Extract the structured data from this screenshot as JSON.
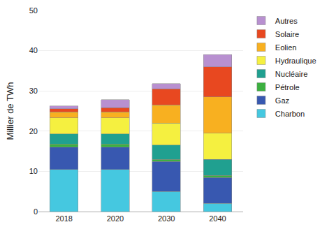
{
  "chart_data": {
    "type": "bar",
    "stacked": true,
    "categories": [
      "2018",
      "2020",
      "2030",
      "2040"
    ],
    "series": [
      {
        "name": "Charbon",
        "color": "#45C8E0",
        "values": [
          10.5,
          10.5,
          5.0,
          2.0
        ]
      },
      {
        "name": "Gaz",
        "color": "#3858B0",
        "values": [
          5.5,
          5.5,
          7.5,
          6.5
        ]
      },
      {
        "name": "Pétrole",
        "color": "#3CB040",
        "values": [
          0.8,
          0.8,
          0.5,
          0.5
        ]
      },
      {
        "name": "Nucléaire",
        "color": "#20A090",
        "values": [
          2.5,
          2.5,
          3.5,
          4.0
        ]
      },
      {
        "name": "Hydraulique",
        "color": "#F5F040",
        "values": [
          4.0,
          4.0,
          5.5,
          6.5
        ]
      },
      {
        "name": "Eolien",
        "color": "#F8B020",
        "values": [
          1.5,
          1.5,
          4.5,
          9.0
        ]
      },
      {
        "name": "Solaire",
        "color": "#E84820",
        "values": [
          0.8,
          1.0,
          4.0,
          7.5
        ]
      },
      {
        "name": "Autres",
        "color": "#B890D0",
        "values": [
          0.7,
          2.0,
          1.3,
          3.0
        ]
      }
    ],
    "ylabel": "Millier de TWh",
    "ylim": [
      0,
      50
    ],
    "yticks": [
      0,
      10,
      20,
      30,
      40,
      50
    ],
    "grid": true,
    "legend": "right"
  }
}
